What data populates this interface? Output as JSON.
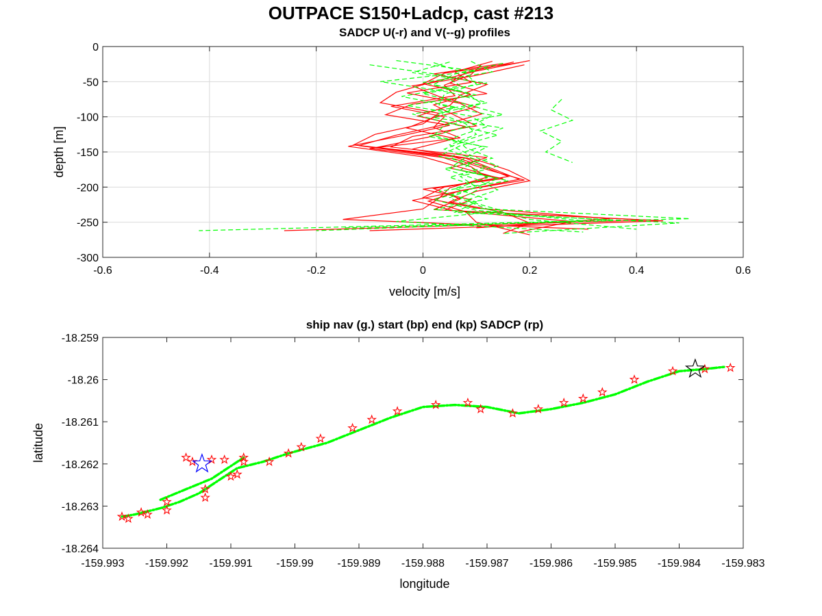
{
  "figure": {
    "title": "OUTPACE S150+Ladcp, cast #213"
  },
  "chart_data": [
    {
      "type": "line",
      "title": "SADCP U(-r) and V(--g) profiles",
      "xlabel": "velocity [m/s]",
      "ylabel": "depth [m]",
      "xlim": [
        -0.6,
        0.6
      ],
      "ylim": [
        -300,
        0
      ],
      "xticks": [
        -0.6,
        -0.4,
        -0.2,
        0,
        0.2,
        0.4,
        0.6
      ],
      "xtick_labels": [
        "-0.6",
        "-0.4",
        "-0.2",
        "0",
        "0.2",
        "0.4",
        "0.6"
      ],
      "yticks": [
        0,
        -50,
        -100,
        -150,
        -200,
        -250,
        -300
      ],
      "ytick_labels": [
        "0",
        "-50",
        "-100",
        "-150",
        "-200",
        "-250",
        "-300"
      ],
      "grid": true,
      "colors": {
        "U": "#ff0000",
        "V": "#00ff00"
      },
      "series": [
        {
          "component": "U",
          "style": "solid",
          "profiles": [
            {
              "depth": [
                -20,
                -35,
                -50,
                -65,
                -80,
                -95,
                -110,
                -125,
                -140,
                -155,
                -170,
                -185,
                -200,
                -215,
                -230,
                -245,
                -258
              ],
              "values": [
                0.2,
                0.1,
                0.02,
                -0.05,
                -0.08,
                0.03,
                0.0,
                -0.09,
                -0.13,
                0.05,
                0.11,
                0.16,
                0.04,
                0.0,
                0.1,
                0.35,
                0.1
              ]
            },
            {
              "depth": [
                -22,
                -37,
                -52,
                -67,
                -82,
                -97,
                -112,
                -127,
                -142,
                -157,
                -172,
                -187,
                -202,
                -217,
                -232,
                -247,
                -262
              ],
              "values": [
                0.17,
                0.08,
                0.05,
                0.12,
                -0.02,
                -0.07,
                0.05,
                -0.04,
                -0.14,
                0.0,
                0.07,
                0.14,
                0.02,
                0.07,
                0.02,
                0.42,
                -0.26
              ]
            },
            {
              "depth": [
                -24,
                -39,
                -54,
                -69,
                -84,
                -99,
                -114,
                -129,
                -144,
                -159,
                -174,
                -189,
                -204,
                -219,
                -234,
                -249,
                -264
              ],
              "values": [
                0.15,
                0.02,
                0.12,
                0.07,
                0.05,
                -0.01,
                0.08,
                0.01,
                -0.09,
                0.08,
                0.13,
                0.18,
                0.08,
                -0.02,
                0.06,
                0.28,
                0.18
              ]
            },
            {
              "depth": [
                -26,
                -41,
                -56,
                -71,
                -86,
                -101,
                -116,
                -131,
                -146,
                -161,
                -176,
                -191,
                -206,
                -221,
                -236,
                -251,
                -266
              ],
              "values": [
                0.19,
                0.1,
                -0.02,
                0.03,
                0.1,
                0.02,
                -0.03,
                0.06,
                -0.02,
                0.1,
                0.16,
                0.2,
                0.1,
                0.05,
                0.15,
                0.2,
                0.15
              ]
            },
            {
              "depth": [
                -21,
                -36,
                -51,
                -66,
                -81,
                -96,
                -111,
                -126,
                -141,
                -156,
                -171,
                -186,
                -201,
                -216,
                -231,
                -246,
                -260
              ],
              "values": [
                0.13,
                0.06,
                0.09,
                -0.03,
                0.07,
                0.11,
                0.04,
                -0.05,
                -0.12,
                0.03,
                0.09,
                0.12,
                0.05,
                0.03,
                0.0,
                -0.15,
                0.31
              ]
            },
            {
              "depth": [
                -23,
                -38,
                -53,
                -68,
                -83,
                -98,
                -113,
                -128,
                -143,
                -158,
                -173,
                -188,
                -203,
                -218,
                -233,
                -248,
                -262
              ],
              "values": [
                0.18,
                0.04,
                0.0,
                0.09,
                0.02,
                0.06,
                0.1,
                -0.02,
                -0.06,
                0.12,
                0.05,
                0.15,
                0.0,
                0.09,
                0.04,
                0.45,
                -0.1
              ]
            },
            {
              "depth": [
                -25,
                -40,
                -55,
                -70,
                -85,
                -100,
                -115,
                -130,
                -145,
                -160,
                -175,
                -190,
                -205,
                -220,
                -235,
                -250,
                -268
              ],
              "values": [
                0.11,
                0.09,
                0.04,
                0.06,
                -0.06,
                0.04,
                0.02,
                0.07,
                -0.1,
                0.06,
                0.12,
                0.19,
                0.07,
                0.01,
                0.08,
                0.1,
                0.2
              ]
            }
          ]
        },
        {
          "component": "V",
          "style": "dashed",
          "profiles": [
            {
              "depth": [
                -20,
                -35,
                -50,
                -65,
                -80,
                -95,
                -110,
                -125,
                -140,
                -155,
                -170,
                -185,
                -200,
                -215,
                -230,
                -245,
                -258
              ],
              "values": [
                -0.05,
                0.1,
                -0.08,
                0.05,
                0.12,
                0.03,
                0.08,
                0.1,
                0.05,
                0.09,
                0.14,
                0.07,
                0.1,
                0.05,
                0.09,
                0.5,
                -0.15
              ]
            },
            {
              "depth": [
                -22,
                -37,
                -52,
                -67,
                -82,
                -97,
                -112,
                -127,
                -142,
                -157,
                -172,
                -187,
                -202,
                -217,
                -232,
                -247,
                -262
              ],
              "values": [
                0.05,
                -0.02,
                0.12,
                0.0,
                0.08,
                0.15,
                0.04,
                0.02,
                0.11,
                0.05,
                0.09,
                0.12,
                0.06,
                0.12,
                0.02,
                0.35,
                -0.42
              ]
            },
            {
              "depth": [
                -24,
                -39,
                -54,
                -69,
                -84,
                -99,
                -114,
                -129,
                -144,
                -159,
                -174,
                -189,
                -204,
                -219,
                -234,
                -249,
                -264
              ],
              "values": [
                0.15,
                0.06,
                0.02,
                0.1,
                -0.03,
                0.09,
                0.12,
                0.06,
                0.08,
                0.13,
                0.04,
                0.1,
                0.14,
                0.08,
                0.15,
                -0.05,
                0.3
              ]
            },
            {
              "depth": [
                -26,
                -41,
                -56,
                -71,
                -86,
                -101,
                -116,
                -131,
                -146,
                -161,
                -176,
                -191,
                -206,
                -221,
                -236,
                -251,
                -266
              ],
              "values": [
                -0.1,
                0.04,
                0.07,
                -0.04,
                0.06,
                0.02,
                0.15,
                0.09,
                0.04,
                0.1,
                0.07,
                0.16,
                0.03,
                0.1,
                0.06,
                0.48,
                0.15
              ]
            },
            {
              "depth": [
                -21,
                -36,
                -51,
                -66,
                -81,
                -96,
                -111,
                -126,
                -141,
                -156,
                -171,
                -186,
                -201,
                -216,
                -231,
                -246,
                -260
              ],
              "values": [
                0.09,
                0.13,
                0.0,
                0.08,
                0.11,
                -0.02,
                0.06,
                0.14,
                0.07,
                0.03,
                0.12,
                0.05,
                0.11,
                0.07,
                0.12,
                0.2,
                0.4
              ]
            },
            {
              "depth": [
                -23,
                -38,
                -53,
                -68,
                -83,
                -98,
                -113,
                -128,
                -143,
                -158,
                -173,
                -188,
                -203,
                -218,
                -233,
                -248,
                -262
              ],
              "values": [
                0.02,
                0.08,
                0.1,
                0.04,
                0.03,
                0.13,
                0.09,
                0.01,
                0.12,
                0.08,
                0.05,
                0.14,
                0.09,
                0.02,
                0.1,
                0.3,
                -0.2
              ]
            },
            {
              "depth": [
                -75,
                -90,
                -105,
                -120,
                -135,
                -150,
                -165
              ],
              "values": [
                0.26,
                0.24,
                0.28,
                0.22,
                0.26,
                0.23,
                0.28
              ]
            }
          ]
        }
      ]
    },
    {
      "type": "scatter",
      "title": "ship nav (g.) start (bp) end (kp) SADCP (rp)",
      "xlabel": "longitude",
      "ylabel": "latitude",
      "xlim": [
        -159.993,
        -159.983
      ],
      "ylim": [
        -18.264,
        -18.259
      ],
      "xticks": [
        -159.993,
        -159.992,
        -159.991,
        -159.99,
        -159.989,
        -159.988,
        -159.987,
        -159.986,
        -159.985,
        -159.984,
        -159.983
      ],
      "xtick_labels": [
        "-159.993",
        "-159.992",
        "-159.991",
        "-159.99",
        "-159.989",
        "-159.988",
        "-159.987",
        "-159.986",
        "-159.985",
        "-159.984",
        "-159.983"
      ],
      "yticks": [
        -18.259,
        -18.26,
        -18.261,
        -18.262,
        -18.263,
        -18.264
      ],
      "ytick_labels": [
        "-18.259",
        "-18.26",
        "-18.261",
        "-18.262",
        "-18.263",
        "-18.264"
      ],
      "grid": false,
      "colors": {
        "nav": "#00ff00",
        "start": "#0000ff",
        "end": "#000000",
        "sadcp": "#ff0000"
      },
      "nav_track": {
        "lon": [
          -159.9927,
          -159.9925,
          -159.9921,
          -159.9918,
          -159.9915,
          -159.9912,
          -159.9909,
          -159.9905,
          -159.9901,
          -159.9895,
          -159.989,
          -159.9885,
          -159.988,
          -159.9875,
          -159.987,
          -159.9865,
          -159.986,
          -159.9855,
          -159.985,
          -159.9845,
          -159.984,
          -159.9836,
          -159.9833
        ],
        "lat": [
          -18.26325,
          -18.2632,
          -18.26305,
          -18.2629,
          -18.2627,
          -18.2624,
          -18.2621,
          -18.26195,
          -18.26175,
          -18.2615,
          -18.2612,
          -18.2609,
          -18.26065,
          -18.2606,
          -18.26065,
          -18.2608,
          -18.2607,
          -18.26055,
          -18.26035,
          -18.26005,
          -18.2598,
          -18.25975,
          -18.2597
        ]
      },
      "nav_track_upper": {
        "lon": [
          -159.9921,
          -159.9917,
          -159.9913,
          -159.991,
          -159.9908
        ],
        "lat": [
          -18.26285,
          -18.2626,
          -18.26235,
          -18.26205,
          -18.26185
        ]
      },
      "sadcp_points": {
        "lon": [
          -159.9927,
          -159.9926,
          -159.9924,
          -159.9923,
          -159.992,
          -159.992,
          -159.9917,
          -159.9916,
          -159.9914,
          -159.9914,
          -159.9913,
          -159.9911,
          -159.991,
          -159.9909,
          -159.9908,
          -159.9908,
          -159.9904,
          -159.9901,
          -159.9899,
          -159.9896,
          -159.9891,
          -159.9888,
          -159.9884,
          -159.9878,
          -159.9873,
          -159.9871,
          -159.9866,
          -159.9862,
          -159.9858,
          -159.9855,
          -159.9852,
          -159.9847,
          -159.9841,
          -159.9836,
          -159.9832
        ],
        "lat": [
          -18.26325,
          -18.2633,
          -18.26315,
          -18.2632,
          -18.2631,
          -18.2629,
          -18.26185,
          -18.26195,
          -18.2628,
          -18.2626,
          -18.2619,
          -18.2619,
          -18.2623,
          -18.26225,
          -18.26185,
          -18.26195,
          -18.26195,
          -18.26175,
          -18.2616,
          -18.2614,
          -18.26115,
          -18.26095,
          -18.26075,
          -18.2606,
          -18.26055,
          -18.2607,
          -18.2608,
          -18.2607,
          -18.26055,
          -18.26045,
          -18.2603,
          -18.26,
          -18.2598,
          -18.25975,
          -18.25972
        ]
      },
      "start_point": {
        "lon": -159.99145,
        "lat": -18.262
      },
      "end_point": {
        "lon": -159.98375,
        "lat": -18.25975
      }
    }
  ]
}
